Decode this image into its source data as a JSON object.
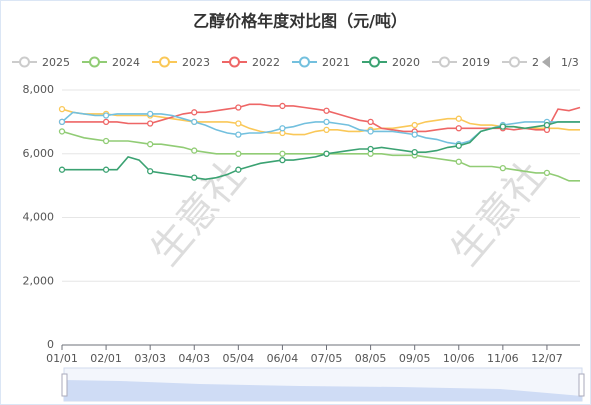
{
  "chart_data": {
    "type": "line",
    "title": "乙醇价格年度对比图（元/吨）",
    "watermark": "生意社",
    "legend_inactive_before": [
      "2025"
    ],
    "legend_inactive_after": [
      "2019",
      "2"
    ],
    "inactive_color": "#cccccc",
    "legend_page": "1/3",
    "categories": [
      "01/01",
      null,
      null,
      null,
      "02/01",
      null,
      null,
      null,
      "03/03",
      null,
      null,
      null,
      "04/03",
      null,
      null,
      null,
      "05/04",
      null,
      null,
      null,
      "06/04",
      null,
      null,
      null,
      "07/05",
      null,
      null,
      null,
      "08/05",
      null,
      null,
      null,
      "09/05",
      null,
      null,
      null,
      "10/06",
      null,
      null,
      null,
      "11/06",
      null,
      null,
      null,
      "12/07",
      null,
      null,
      null
    ],
    "series": [
      {
        "name": "2024",
        "color": "#91cc75",
        "values": [
          6700,
          6600,
          6500,
          6450,
          6400,
          6400,
          6400,
          6350,
          6300,
          6300,
          6250,
          6200,
          6100,
          6050,
          6000,
          6000,
          6000,
          6000,
          6000,
          6000,
          6000,
          6000,
          6000,
          6000,
          6000,
          6000,
          6000,
          6000,
          6000,
          6000,
          5950,
          5950,
          5950,
          5900,
          5850,
          5800,
          5750,
          5600,
          5600,
          5600,
          5550,
          5500,
          5450,
          5400,
          5400,
          5300,
          5150,
          5150
        ]
      },
      {
        "name": "2023",
        "color": "#fac858",
        "values": [
          7400,
          7300,
          7250,
          7250,
          7250,
          7200,
          7200,
          7200,
          7200,
          7150,
          7100,
          7050,
          7000,
          7000,
          7000,
          7000,
          6950,
          6800,
          6700,
          6650,
          6650,
          6600,
          6600,
          6700,
          6750,
          6750,
          6700,
          6700,
          6750,
          6800,
          6800,
          6850,
          6900,
          7000,
          7050,
          7100,
          7100,
          6950,
          6900,
          6900,
          6850,
          6850,
          6800,
          6800,
          6800,
          6800,
          6750,
          6750
        ]
      },
      {
        "name": "2022",
        "color": "#ee6666",
        "values": [
          7000,
          7000,
          7000,
          7000,
          7000,
          7000,
          6950,
          6950,
          6950,
          7050,
          7150,
          7250,
          7300,
          7300,
          7350,
          7400,
          7450,
          7550,
          7550,
          7500,
          7500,
          7500,
          7450,
          7400,
          7350,
          7250,
          7150,
          7050,
          7000,
          6800,
          6750,
          6700,
          6700,
          6700,
          6750,
          6800,
          6800,
          6800,
          6800,
          6800,
          6800,
          6750,
          6800,
          6750,
          6750,
          7400,
          7350,
          7450
        ]
      },
      {
        "name": "2021",
        "color": "#73c0de",
        "values": [
          7000,
          7300,
          7250,
          7200,
          7200,
          7250,
          7250,
          7250,
          7250,
          7250,
          7200,
          7100,
          7000,
          6900,
          6750,
          6650,
          6600,
          6650,
          6650,
          6700,
          6800,
          6850,
          6950,
          7000,
          7000,
          6950,
          6900,
          6750,
          6700,
          6700,
          6700,
          6650,
          6600,
          6500,
          6450,
          6350,
          6300,
          6400,
          6700,
          6800,
          6900,
          6950,
          7000,
          7000,
          7000,
          7000,
          7000,
          7000
        ]
      },
      {
        "name": "2020",
        "color": "#3ba272",
        "values": [
          5500,
          5500,
          5500,
          5500,
          5500,
          5500,
          5900,
          5800,
          5450,
          5400,
          5350,
          5300,
          5250,
          5200,
          5250,
          5350,
          5500,
          5600,
          5700,
          5750,
          5800,
          5800,
          5850,
          5900,
          6000,
          6050,
          6100,
          6150,
          6150,
          6200,
          6150,
          6100,
          6050,
          6050,
          6100,
          6200,
          6250,
          6350,
          6700,
          6800,
          6850,
          6850,
          6800,
          6850,
          6900,
          7000,
          7000,
          7000
        ]
      }
    ],
    "ylim": [
      0,
      8000
    ],
    "yticks": [
      0,
      {
        "value": 2000,
        "label": "2,000"
      },
      {
        "value": 4000,
        "label": "4,000"
      },
      {
        "value": 6000,
        "label": "6,000"
      },
      {
        "value": 8000,
        "label": "8,000"
      }
    ],
    "grid": true
  }
}
